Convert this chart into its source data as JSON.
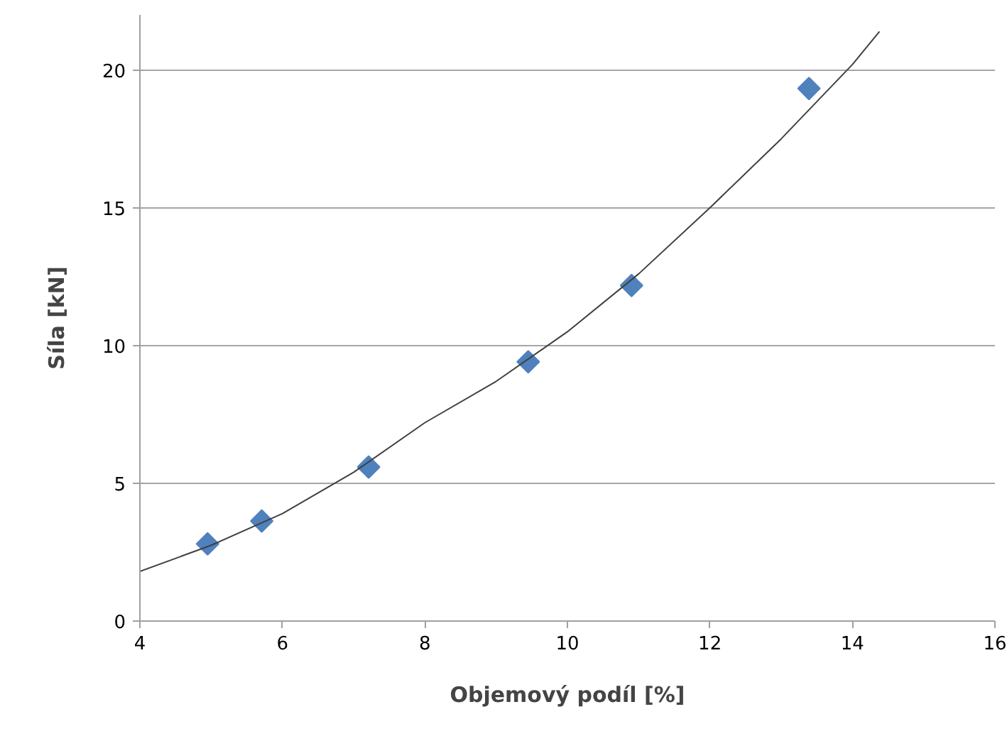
{
  "chart_data": {
    "type": "scatter",
    "xlabel": "Objemový podíl [%]",
    "ylabel": "Síla [kN]",
    "xlim": [
      4,
      16
    ],
    "ylim": [
      0,
      22
    ],
    "xticks": [
      4,
      6,
      8,
      10,
      12,
      14,
      16
    ],
    "yticks": [
      0,
      5,
      10,
      15,
      20
    ],
    "grid": "y",
    "series": [
      {
        "marker": "diamond",
        "color": "#4f81bd",
        "x": [
          4.95,
          5.71,
          7.21,
          9.45,
          10.9,
          13.39
        ],
        "values": [
          2.8,
          3.63,
          5.59,
          9.41,
          12.18,
          19.33
        ]
      },
      {
        "type": "line",
        "marker": "none",
        "color": "#404040",
        "x": [
          4,
          5,
          6,
          7,
          8,
          9,
          10,
          11,
          12,
          13,
          14,
          14.38
        ],
        "values": [
          1.8,
          2.75,
          3.9,
          5.4,
          7.2,
          8.7,
          10.5,
          12.6,
          15.0,
          17.5,
          20.2,
          21.4
        ]
      }
    ]
  }
}
